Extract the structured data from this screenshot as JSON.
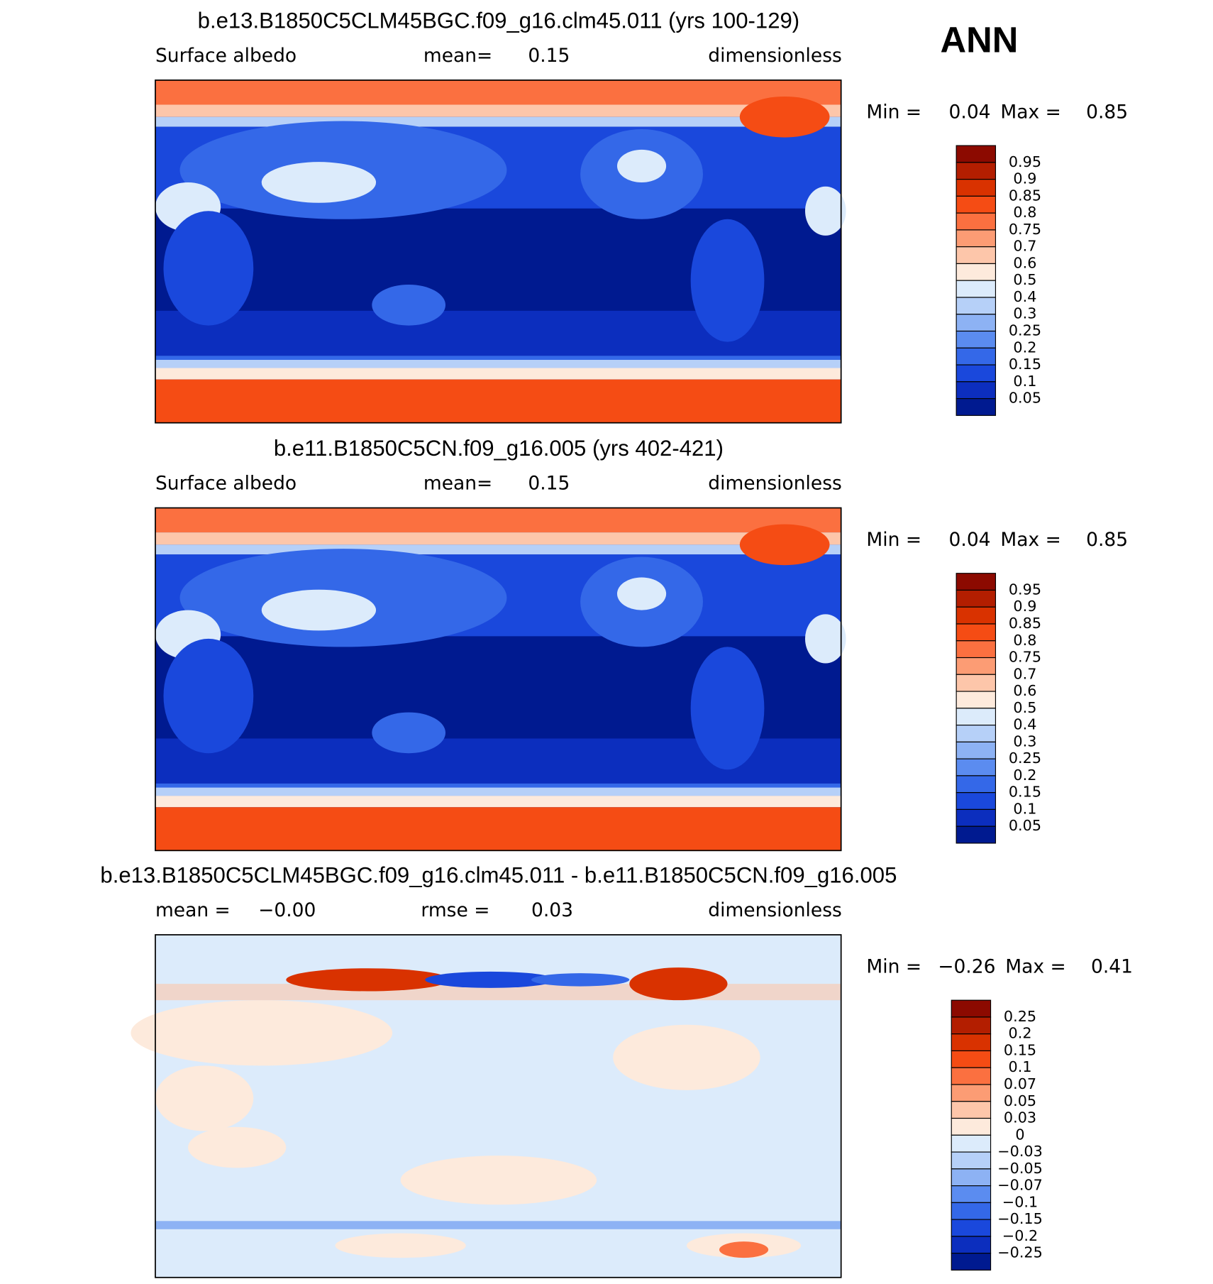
{
  "header": {
    "title": "ANN"
  },
  "panels": [
    {
      "title": "b.e13.B1850C5CLM45BGC.f09_g16.clm45.011 (yrs 100-129)",
      "subtitle": [
        "Surface albedo",
        "mean=",
        "0.15",
        "dimensionless"
      ],
      "range": [
        "Min =",
        "0.04",
        "Max =",
        "0.85"
      ],
      "colorbar": {
        "labels": [
          "0.95",
          "0.9",
          "0.85",
          "0.8",
          "0.75",
          "0.7",
          "0.6",
          "0.5",
          "0.4",
          "0.3",
          "0.25",
          "0.2",
          "0.15",
          "0.1",
          "0.05"
        ],
        "colors": [
          "#8c0a00",
          "#b31e00",
          "#d93200",
          "#f54c14",
          "#fb7040",
          "#fc9c74",
          "#fdc6aa",
          "#fdeadc",
          "#dcebfb",
          "#b6d0f8",
          "#8db2f4",
          "#5b8cf0",
          "#3468e8",
          "#1a48dc",
          "#0c2ebe",
          "#001a90"
        ]
      }
    },
    {
      "title": "b.e11.B1850C5CN.f09_g16.005 (yrs 402-421)",
      "subtitle": [
        "Surface albedo",
        "mean=",
        "0.15",
        "dimensionless"
      ],
      "range": [
        "Min =",
        "0.04",
        "Max =",
        "0.85"
      ],
      "colorbar": {
        "labels": [
          "0.95",
          "0.9",
          "0.85",
          "0.8",
          "0.75",
          "0.7",
          "0.6",
          "0.5",
          "0.4",
          "0.3",
          "0.25",
          "0.2",
          "0.15",
          "0.1",
          "0.05"
        ],
        "colors": [
          "#8c0a00",
          "#b31e00",
          "#d93200",
          "#f54c14",
          "#fb7040",
          "#fc9c74",
          "#fdc6aa",
          "#fdeadc",
          "#dcebfb",
          "#b6d0f8",
          "#8db2f4",
          "#5b8cf0",
          "#3468e8",
          "#1a48dc",
          "#0c2ebe",
          "#001a90"
        ]
      }
    },
    {
      "title": "b.e13.B1850C5CLM45BGC.f09_g16.clm45.011 - b.e11.B1850C5CN.f09_g16.005",
      "subtitle": [
        "mean =",
        "−0.00",
        "rmse =",
        "0.03",
        "dimensionless"
      ],
      "range": [
        "Min =",
        "−0.26",
        "Max =",
        "0.41"
      ],
      "colorbar": {
        "labels": [
          "0.25",
          "0.2",
          "0.15",
          "0.1",
          "0.07",
          "0.05",
          "0.03",
          "0",
          "−0.03",
          "−0.05",
          "−0.07",
          "−0.1",
          "−0.15",
          "−0.2",
          "−0.25"
        ],
        "colors": [
          "#8c0a00",
          "#b31e00",
          "#d93200",
          "#f54c14",
          "#fb7040",
          "#fc9c74",
          "#fdc6aa",
          "#fdeadc",
          "#dcebfb",
          "#b6d0f8",
          "#8db2f4",
          "#5b8cf0",
          "#3468e8",
          "#1a48dc",
          "#0c2ebe",
          "#001a90"
        ]
      }
    }
  ]
}
